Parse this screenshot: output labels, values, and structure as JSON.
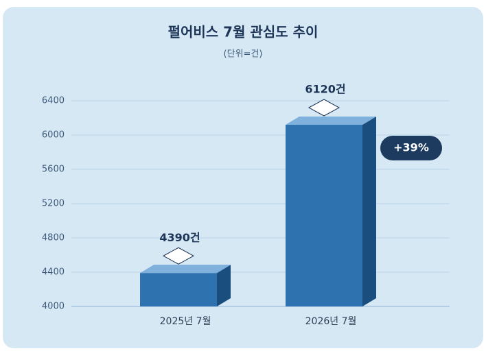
{
  "chart_data": {
    "type": "bar",
    "title": "펄어비스 7월 관심도 추이",
    "subtitle": "(단위=건)",
    "categories": [
      "2025년 7월",
      "2026년 7월"
    ],
    "values": [
      4390,
      6120
    ],
    "value_labels": [
      "4390건",
      "6120건"
    ],
    "color": "#2e72b0",
    "ylim": [
      4000,
      6400
    ],
    "yticks": [
      4000,
      4400,
      4800,
      5200,
      5600,
      6000,
      6400
    ],
    "grid": true,
    "annotation": "+39%"
  }
}
